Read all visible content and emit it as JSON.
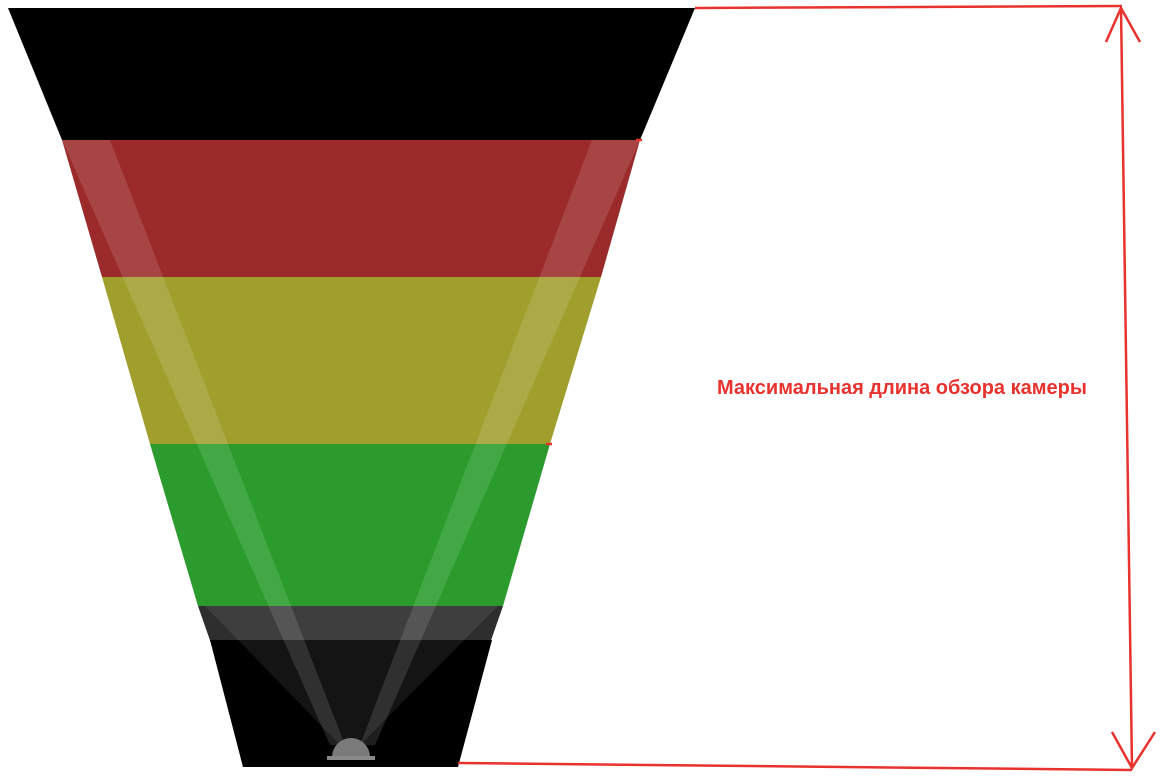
{
  "annotation": {
    "label": "Максимальная длина обзора камеры",
    "color": "#e8322e"
  },
  "zones": [
    {
      "name": "top",
      "color": "#000000"
    },
    {
      "name": "red",
      "color": "#9b2b2b"
    },
    {
      "name": "yellow",
      "color": "#a09f2d"
    },
    {
      "name": "green",
      "color": "#2a9b2c"
    },
    {
      "name": "dark-gray",
      "color": "#2e2e2e"
    },
    {
      "name": "bottom",
      "color": "#000000"
    }
  ],
  "camera": {
    "icon": "camera-dome-icon",
    "color": "#7a7a7a"
  }
}
